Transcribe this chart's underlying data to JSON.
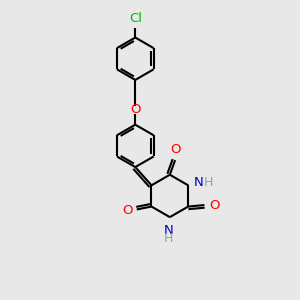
{
  "bg_color": "#e8e8e8",
  "bond_color": "#000000",
  "bond_width": 1.5,
  "O_color": "#ff0000",
  "N_color": "#0000cc",
  "Cl_color": "#00bb00",
  "H_color": "#7faaaa",
  "figsize": [
    3.0,
    3.0
  ],
  "dpi": 100,
  "xlim": [
    0,
    10
  ],
  "ylim": [
    0,
    10
  ]
}
